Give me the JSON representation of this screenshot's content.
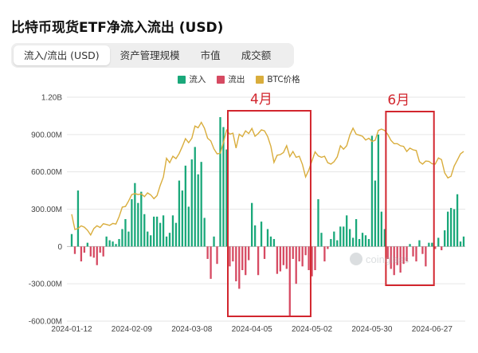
{
  "title": "比特币现货ETF净流入流出 (USD)",
  "tabs": [
    {
      "label": "流入/流出 (USD)",
      "active": true
    },
    {
      "label": "资产管理规模",
      "active": false
    },
    {
      "label": "市值",
      "active": false
    },
    {
      "label": "成交额",
      "active": false
    }
  ],
  "watermark": "coinglass",
  "colors": {
    "inflow": "#1aa87a",
    "outflow": "#d64a62",
    "btc": "#d9ad3c",
    "annotation": "#d2262e",
    "tab_bg": "#eeeeee"
  },
  "chart_data": {
    "type": "bar",
    "legend": [
      {
        "name": "流入",
        "color": "#1aa87a"
      },
      {
        "name": "流出",
        "color": "#d64a62"
      },
      {
        "name": "BTC价格",
        "color": "#d9ad3c"
      }
    ],
    "ylim_millions": [
      -600,
      1200
    ],
    "yticks": [
      {
        "value": 1200,
        "label": "1.20B"
      },
      {
        "value": 900,
        "label": "900.00M"
      },
      {
        "value": 600,
        "label": "600.00M"
      },
      {
        "value": 300,
        "label": "300.00M"
      },
      {
        "value": 0,
        "label": "0"
      },
      {
        "value": -300,
        "label": "-300.00M"
      },
      {
        "value": -600,
        "label": "-600.00M"
      }
    ],
    "xticks": [
      {
        "index": 0,
        "label": "2024-01-12"
      },
      {
        "index": 19,
        "label": "2024-02-09"
      },
      {
        "index": 38,
        "label": "2024-03-08"
      },
      {
        "index": 57,
        "label": "2024-04-05"
      },
      {
        "index": 76,
        "label": "2024-05-02"
      },
      {
        "index": 95,
        "label": "2024-05-30"
      },
      {
        "index": 114,
        "label": "2024-06-27"
      }
    ],
    "flows_millions": [
      100,
      -60,
      450,
      -120,
      -50,
      30,
      -80,
      -90,
      -150,
      -50,
      -80,
      80,
      50,
      40,
      20,
      60,
      140,
      220,
      120,
      380,
      510,
      350,
      440,
      260,
      120,
      90,
      240,
      240,
      190,
      250,
      80,
      110,
      250,
      190,
      530,
      450,
      650,
      320,
      700,
      800,
      580,
      680,
      230,
      -100,
      -260,
      80,
      -140,
      1040,
      960,
      780,
      -160,
      -120,
      -280,
      -340,
      -190,
      -230,
      -110,
      350,
      170,
      -230,
      200,
      -100,
      140,
      80,
      60,
      -220,
      -200,
      -150,
      -180,
      -560,
      -100,
      -300,
      -120,
      -160,
      -70,
      -190,
      -240,
      -190,
      380,
      110,
      -120,
      -20,
      60,
      120,
      50,
      160,
      160,
      250,
      140,
      70,
      220,
      60,
      110,
      90,
      60,
      890,
      530,
      900,
      280,
      140,
      -100,
      -180,
      -230,
      -150,
      -210,
      -140,
      -120,
      20,
      -80,
      -120,
      50,
      -60,
      -160,
      30,
      30,
      -20,
      70,
      -30,
      130,
      280,
      310,
      300,
      420,
      40,
      80
    ],
    "btc_price_usd": [
      46000,
      41500,
      41800,
      42600,
      42200,
      41300,
      39900,
      41800,
      42600,
      42100,
      43200,
      43000,
      42700,
      43300,
      43100,
      45300,
      48100,
      48300,
      49900,
      51800,
      52100,
      51800,
      52000,
      51200,
      52300,
      51700,
      50600,
      51500,
      54500,
      57000,
      62500,
      61200,
      63100,
      62400,
      63900,
      66000,
      68300,
      67100,
      68400,
      72000,
      71500,
      73100,
      71400,
      68400,
      67600,
      65300,
      63800,
      64000,
      67200,
      70800,
      69600,
      69900,
      65500,
      69600,
      68900,
      70600,
      69800,
      71300,
      69000,
      69800,
      70900,
      70600,
      68900,
      66000,
      61300,
      63400,
      63600,
      64200,
      66200,
      63000,
      64500,
      62800,
      63100,
      60700,
      57000,
      59000,
      61700,
      64400,
      63200,
      62800,
      63100,
      61200,
      60800,
      61500,
      62900,
      66200,
      65200,
      66200,
      69400,
      71400,
      69600,
      69300,
      69000,
      67900,
      68400,
      67500,
      67800,
      70700,
      71100,
      70700,
      69500,
      67800,
      66800,
      66800,
      66200,
      66000,
      64500,
      65500,
      65000,
      64800,
      61500,
      60800,
      61700,
      61600,
      60900,
      60800,
      62600,
      62100,
      58200,
      56700,
      57200,
      60200,
      62000,
      63800,
      64500
    ],
    "btc_axis_map": {
      "price_at_zero_flow": 36500,
      "usd_per_million_flow": 36.67
    },
    "annotations": [
      {
        "label": "4月",
        "start_index": 50,
        "end_index": 75
      },
      {
        "label": "6月",
        "start_index": 100,
        "end_index": 114
      }
    ]
  }
}
